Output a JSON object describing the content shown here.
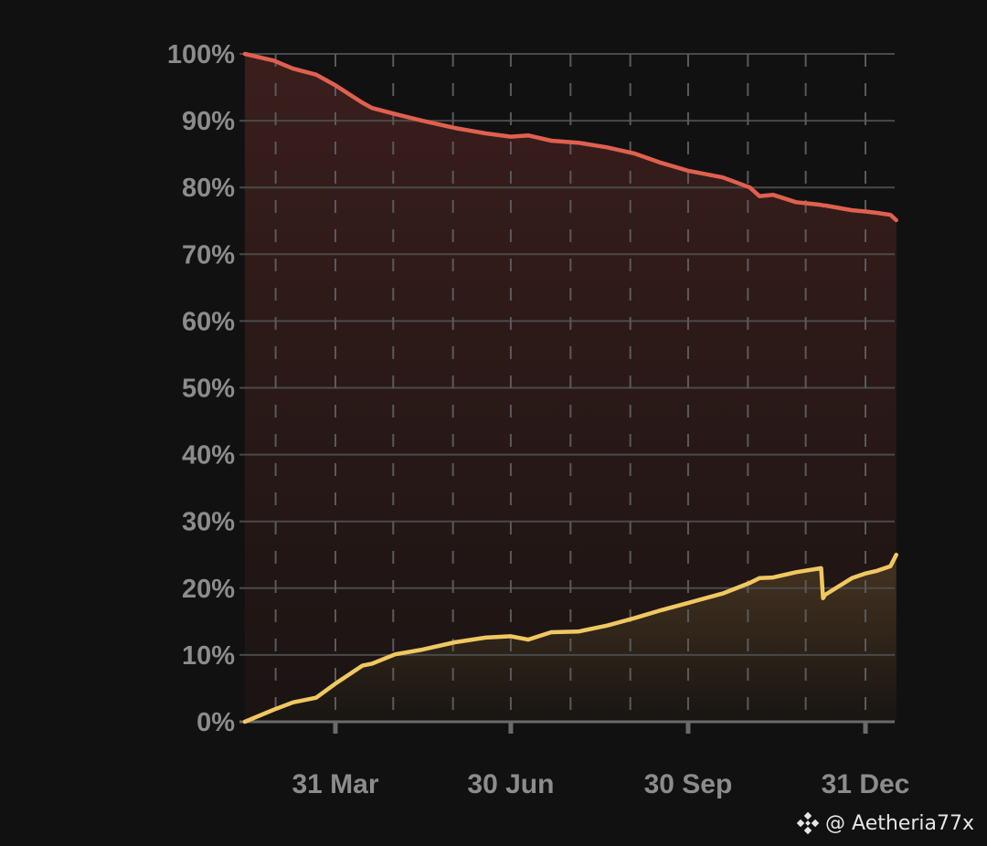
{
  "chart_data": {
    "type": "area",
    "title": "",
    "xlabel": "",
    "ylabel": "",
    "ylim": [
      0,
      100
    ],
    "y_ticks": [
      "0%",
      "10%",
      "20%",
      "30%",
      "40%",
      "50%",
      "60%",
      "70%",
      "80%",
      "90%",
      "100%"
    ],
    "x_ticks": [
      "31 Mar",
      "30 Jun",
      "30 Sep",
      "31 Dec"
    ],
    "grid": {
      "horizontal": "solid",
      "vertical": "dashed monthly"
    },
    "x": [
      "12 Feb",
      "27 Feb",
      "9 Mar",
      "21 Mar",
      "31 Mar",
      "14 Apr",
      "19 Apr",
      "1 May",
      "15 May",
      "1 Jun",
      "17 Jun",
      "30 Jun",
      "9 Jul",
      "21 Jul",
      "4 Aug",
      "19 Aug",
      "2 Sep",
      "16 Sep",
      "30 Sep",
      "18 Oct",
      "1 Nov",
      "6 Nov",
      "13 Nov",
      "25 Nov",
      "8 Dec",
      "9 Dec",
      "10 Dec",
      "24 Dec",
      "31 Dec",
      "6 Jan",
      "13 Jan",
      "16 Jan"
    ],
    "series": [
      {
        "color": "#e0604f",
        "values": [
          100,
          99.0,
          97.8,
          96.9,
          95.3,
          92.7,
          91.9,
          91.0,
          90.0,
          88.9,
          88.1,
          87.6,
          87.8,
          87.0,
          86.7,
          86.0,
          85.1,
          83.7,
          82.5,
          81.5,
          80.0,
          78.7,
          78.9,
          77.8,
          77.4,
          77.3,
          77.3,
          76.6,
          76.4,
          76.2,
          75.9,
          75.1
        ]
      },
      {
        "color": "#f0c860",
        "values": [
          0,
          1.8,
          2.9,
          3.6,
          5.7,
          8.4,
          8.7,
          10.1,
          10.8,
          11.9,
          12.6,
          12.8,
          12.3,
          13.4,
          13.5,
          14.4,
          15.5,
          16.7,
          17.8,
          19.2,
          20.8,
          21.5,
          21.6,
          22.4,
          23.0,
          18.5,
          19.0,
          21.5,
          22.2,
          22.6,
          23.3,
          25.0
        ]
      }
    ]
  },
  "watermark": {
    "icon": "binance-logo-icon",
    "text": "@ Aetheria77x"
  }
}
